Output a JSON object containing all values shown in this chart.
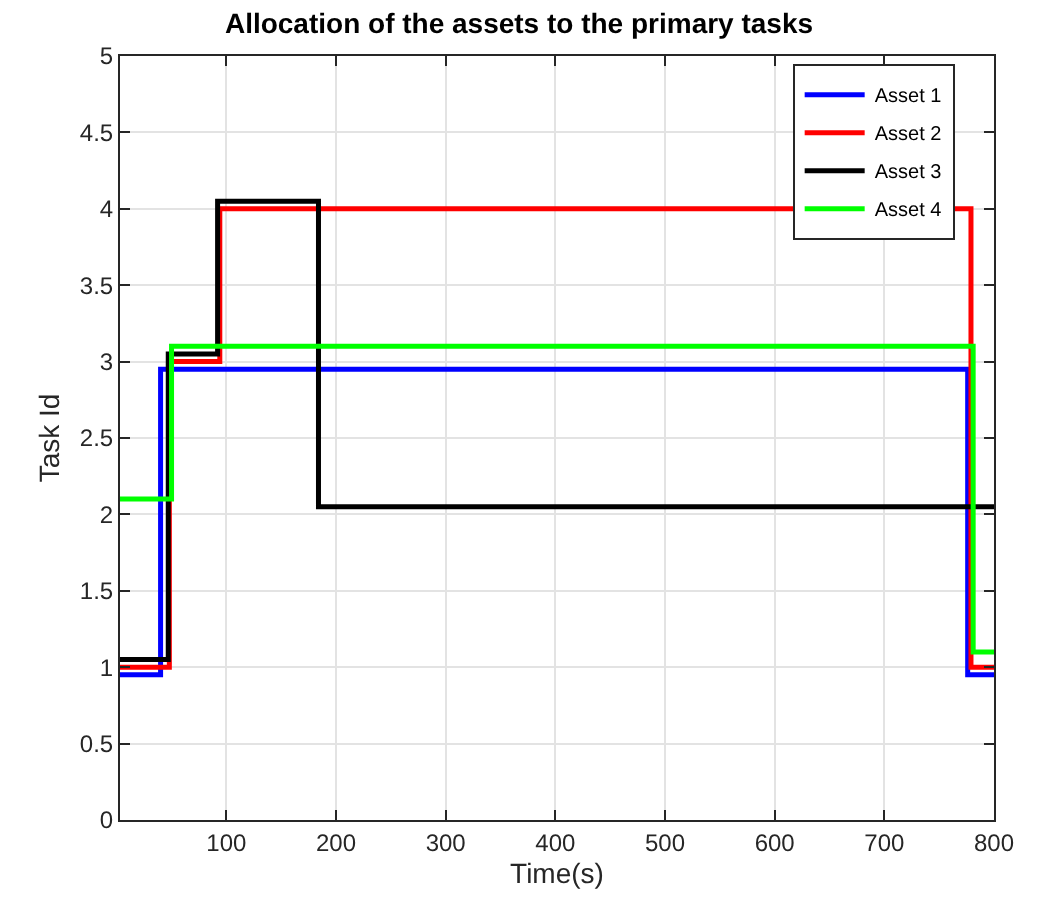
{
  "chart_data": {
    "type": "step",
    "title": "Allocation of the assets to the primary tasks",
    "xlabel": "Time(s)",
    "ylabel": "Task Id",
    "xlim": [
      3,
      800
    ],
    "xticks": [
      100,
      200,
      300,
      400,
      500,
      600,
      700,
      800
    ],
    "ylim": [
      0,
      5
    ],
    "yticks": [
      0,
      0.5,
      1,
      1.5,
      2,
      2.5,
      3,
      3.5,
      4,
      4.5,
      5
    ],
    "grid": true,
    "legend": "top right",
    "marker": "none",
    "line_style": "solid",
    "series": [
      {
        "name": "Asset 1",
        "color": "#0000ff",
        "x": [
          3,
          40,
          776,
          800
        ],
        "values": [
          0.95,
          2.95,
          0.95,
          0.95
        ]
      },
      {
        "name": "Asset 2",
        "color": "#ff0000",
        "x": [
          3,
          48,
          94,
          779,
          800
        ],
        "values": [
          1.0,
          3.0,
          4.0,
          1.0,
          1.0
        ]
      },
      {
        "name": "Asset 3",
        "color": "#000000",
        "x": [
          3,
          47,
          92,
          184,
          800
        ],
        "values": [
          1.05,
          3.05,
          4.05,
          2.05,
          2.05
        ]
      },
      {
        "name": "Asset 4",
        "color": "#00ff00",
        "x": [
          3,
          50,
          781,
          800
        ],
        "values": [
          2.1,
          3.1,
          1.1,
          1.1
        ]
      }
    ]
  }
}
